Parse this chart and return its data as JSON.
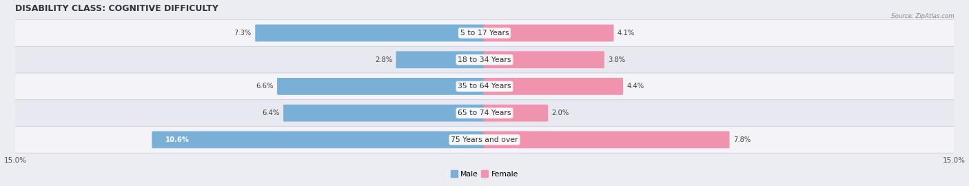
{
  "title": "DISABILITY CLASS: COGNITIVE DIFFICULTY",
  "source": "Source: ZipAtlas.com",
  "categories": [
    "5 to 17 Years",
    "18 to 34 Years",
    "35 to 64 Years",
    "65 to 74 Years",
    "75 Years and over"
  ],
  "male_values": [
    7.3,
    2.8,
    6.6,
    6.4,
    10.6
  ],
  "female_values": [
    4.1,
    3.8,
    4.4,
    2.0,
    7.8
  ],
  "male_color": "#7ab0d8",
  "female_color": "#f093ae",
  "x_max": 15.0,
  "bar_height": 0.58,
  "background_color": "#ecedf3",
  "row_colors": [
    "#f4f4f8",
    "#e8e8f0"
  ],
  "title_fontsize": 9.0,
  "label_fontsize": 7.8,
  "value_fontsize": 7.2,
  "axis_fontsize": 7.5
}
